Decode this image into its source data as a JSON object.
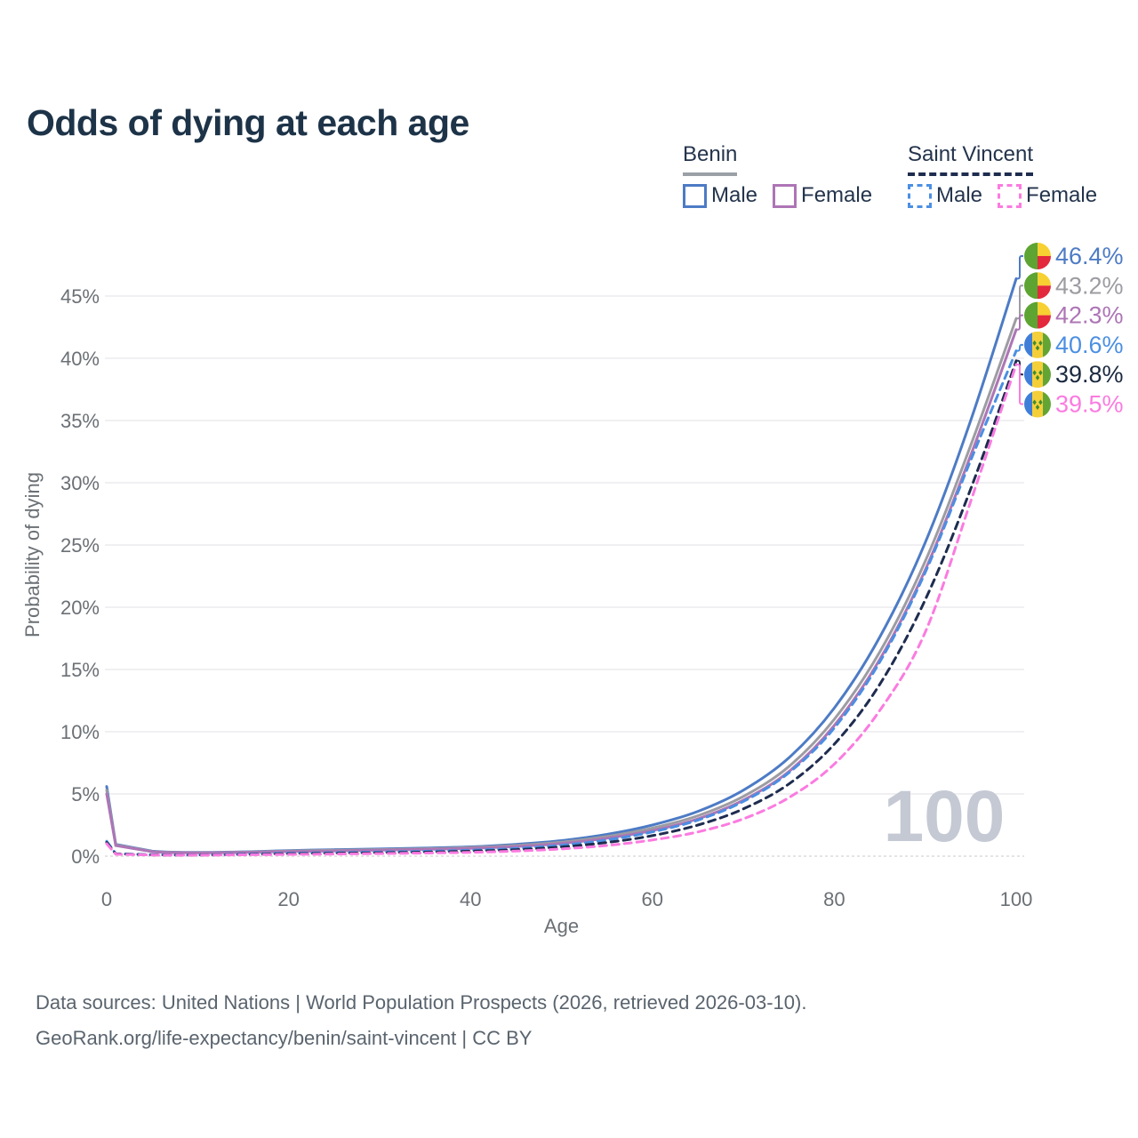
{
  "title": "Odds of dying at each age",
  "legend": {
    "groups": [
      {
        "title": "Benin",
        "underline_style": "solid",
        "underline_color": "#9aa0a6",
        "items": [
          {
            "label": "Male",
            "swatch_color": "#4d7bc5",
            "dash": false
          },
          {
            "label": "Female",
            "swatch_color": "#ad75b5",
            "dash": false
          }
        ]
      },
      {
        "title": "Saint Vincent",
        "underline_style": "dashed",
        "underline_color": "#1e2c4f",
        "items": [
          {
            "label": "Male",
            "swatch_color": "#4b8fe2",
            "dash": true
          },
          {
            "label": "Female",
            "swatch_color": "#fb7be0",
            "dash": true
          }
        ]
      }
    ]
  },
  "watermark": "100",
  "footer": {
    "line1": "Data sources: United Nations | World Population Prospects (2026, retrieved 2026-03-10).",
    "line2": "GeoRank.org/life-expectancy/benin/saint-vincent | CC BY"
  },
  "colors": {
    "title_text": "#1d3348",
    "axis_text": "#6b7075",
    "gridline": "#ececef",
    "baseline": "#dcdcdc",
    "watermark": "#c4c9d4",
    "benin_male": "#4d7bc5",
    "benin_combined": "#9c9ca2",
    "benin_female": "#ad75b5",
    "sv_male": "#4b8fe2",
    "sv_combined": "#1e2c4f",
    "sv_female": "#fb7be0"
  },
  "chart_data": {
    "type": "line",
    "title": "Odds of dying at each age",
    "xlabel": "Age",
    "ylabel": "Probability of dying",
    "xlim": [
      0,
      100
    ],
    "ylim": [
      0,
      47
    ],
    "grid": "horizontal",
    "x_tick_values": [
      0,
      20,
      40,
      60,
      80,
      100
    ],
    "x_tick_labels": [
      "0",
      "20",
      "40",
      "60",
      "80",
      "100"
    ],
    "y_tick_values": [
      0,
      5,
      10,
      15,
      20,
      25,
      30,
      35,
      40,
      45
    ],
    "y_tick_labels": [
      "0%",
      "5%",
      "10%",
      "15%",
      "20%",
      "25%",
      "30%",
      "35%",
      "40%",
      "45%"
    ],
    "x": [
      0,
      1,
      5,
      10,
      15,
      20,
      25,
      30,
      35,
      40,
      45,
      50,
      55,
      60,
      65,
      70,
      75,
      80,
      85,
      90,
      95,
      100
    ],
    "series": [
      {
        "id": "benin-male",
        "name": "Benin Male",
        "country": "Benin",
        "sex": "Male",
        "style": "solid",
        "color": "#4d7bc5",
        "flag": "benin",
        "end_label": "46.4%",
        "end_value": 46.4,
        "label_color": "#4d7bc5",
        "values": [
          5.6,
          0.95,
          0.4,
          0.3,
          0.35,
          0.45,
          0.52,
          0.58,
          0.65,
          0.75,
          0.95,
          1.25,
          1.75,
          2.5,
          3.6,
          5.3,
          7.9,
          11.9,
          17.6,
          25.2,
          35.0,
          46.4
        ]
      },
      {
        "id": "benin-combined",
        "name": "Benin (both sexes)",
        "country": "Benin",
        "sex": "",
        "style": "solid",
        "color": "#9c9ca2",
        "flag": "benin",
        "end_label": "43.2%",
        "end_value": 43.2,
        "label_color": "#9c9ca2",
        "values": [
          5.3,
          0.9,
          0.38,
          0.28,
          0.32,
          0.41,
          0.47,
          0.53,
          0.59,
          0.69,
          0.86,
          1.12,
          1.58,
          2.25,
          3.25,
          4.8,
          7.2,
          11.0,
          16.4,
          23.7,
          33.0,
          43.2
        ]
      },
      {
        "id": "benin-female",
        "name": "Benin Female",
        "country": "Benin",
        "sex": "Female",
        "style": "solid",
        "color": "#ad75b5",
        "flag": "benin",
        "end_label": "42.3%",
        "end_value": 42.3,
        "label_color": "#ad75b5",
        "values": [
          5.0,
          0.85,
          0.36,
          0.27,
          0.3,
          0.37,
          0.42,
          0.48,
          0.54,
          0.63,
          0.78,
          1.02,
          1.44,
          2.05,
          3.0,
          4.5,
          6.8,
          10.5,
          15.8,
          23.0,
          32.2,
          42.3
        ]
      },
      {
        "id": "sv-male",
        "name": "Saint Vincent Male",
        "country": "Saint Vincent",
        "sex": "Male",
        "style": "dashed",
        "color": "#4b8fe2",
        "flag": "sv",
        "end_label": "40.6%",
        "end_value": 40.6,
        "label_color": "#4b8fe2",
        "values": [
          1.2,
          0.2,
          0.12,
          0.1,
          0.16,
          0.24,
          0.28,
          0.33,
          0.39,
          0.48,
          0.62,
          0.88,
          1.3,
          1.95,
          2.9,
          4.4,
          6.7,
          10.3,
          15.6,
          22.8,
          31.8,
          40.6
        ]
      },
      {
        "id": "sv-combined",
        "name": "Saint Vincent (both sexes)",
        "country": "Saint Vincent",
        "sex": "",
        "style": "dashed",
        "color": "#1e2c4f",
        "flag": "sv",
        "end_label": "39.8%",
        "end_value": 39.8,
        "label_color": "#1b2940",
        "values": [
          1.1,
          0.18,
          0.1,
          0.09,
          0.13,
          0.19,
          0.23,
          0.27,
          0.32,
          0.4,
          0.52,
          0.74,
          1.1,
          1.65,
          2.5,
          3.8,
          5.8,
          9.0,
          13.8,
          20.6,
          29.5,
          39.8
        ]
      },
      {
        "id": "sv-female",
        "name": "Saint Vincent Female",
        "country": "Saint Vincent",
        "sex": "Female",
        "style": "dashed",
        "color": "#fb7be0",
        "flag": "sv",
        "end_label": "39.5%",
        "end_value": 39.5,
        "label_color": "#fb7be0",
        "values": [
          1.0,
          0.16,
          0.09,
          0.08,
          0.11,
          0.14,
          0.17,
          0.21,
          0.25,
          0.31,
          0.41,
          0.58,
          0.86,
          1.3,
          1.95,
          3.0,
          4.7,
          7.4,
          11.7,
          18.0,
          28.5,
          39.5
        ]
      }
    ]
  }
}
